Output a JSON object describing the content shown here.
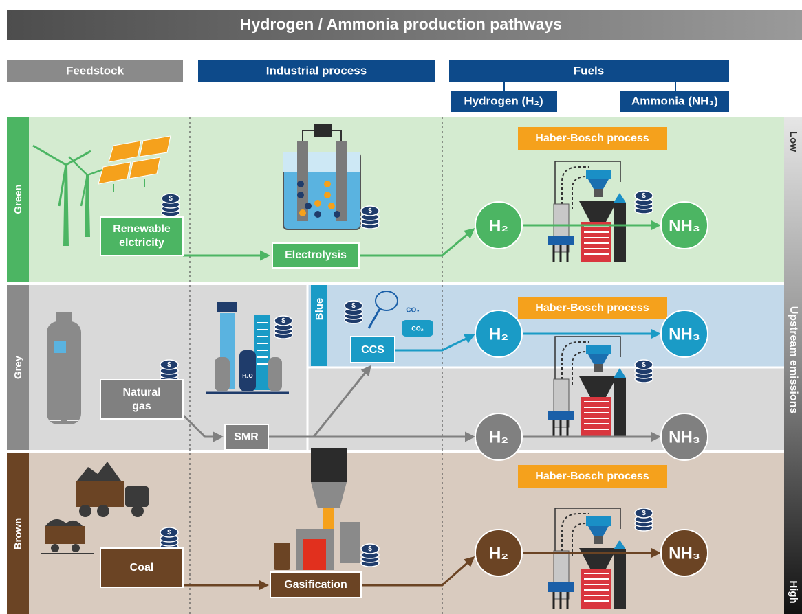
{
  "title": "Hydrogen / Ammonia production pathways",
  "columns": {
    "feedstock": "Feedstock",
    "process": "Industrial process",
    "fuels": "Fuels",
    "hydrogen": "Hydrogen (H₂)",
    "ammonia": "Ammonia (NH₃)"
  },
  "emissions_scale": {
    "low": "Low",
    "label": "Upstream emissions",
    "high": "High"
  },
  "currency": "$",
  "rows": [
    {
      "name": "Green",
      "feedstock": [
        "Renewable",
        "elctricity"
      ],
      "process": "Electrolysis",
      "haber_bosch": "Haber-Bosch process",
      "hydrogen": "H₂",
      "ammonia": "NH₃"
    },
    {
      "name": "Blue",
      "process": "CCS",
      "co2": [
        "CO₂",
        "CO₂"
      ],
      "haber_bosch": "Haber-Bosch process",
      "hydrogen": "H₂",
      "ammonia": "NH₃"
    },
    {
      "name": "Grey",
      "feedstock": [
        "Natural",
        "gas"
      ],
      "process": "SMR",
      "h2o": "H₂O",
      "hydrogen": "H₂",
      "ammonia": "NH₃"
    },
    {
      "name": "Brown",
      "feedstock": [
        "Coal"
      ],
      "process": "Gasification",
      "haber_bosch": "Haber-Bosch process",
      "hydrogen": "H₂",
      "ammonia": "NH₃"
    }
  ]
}
